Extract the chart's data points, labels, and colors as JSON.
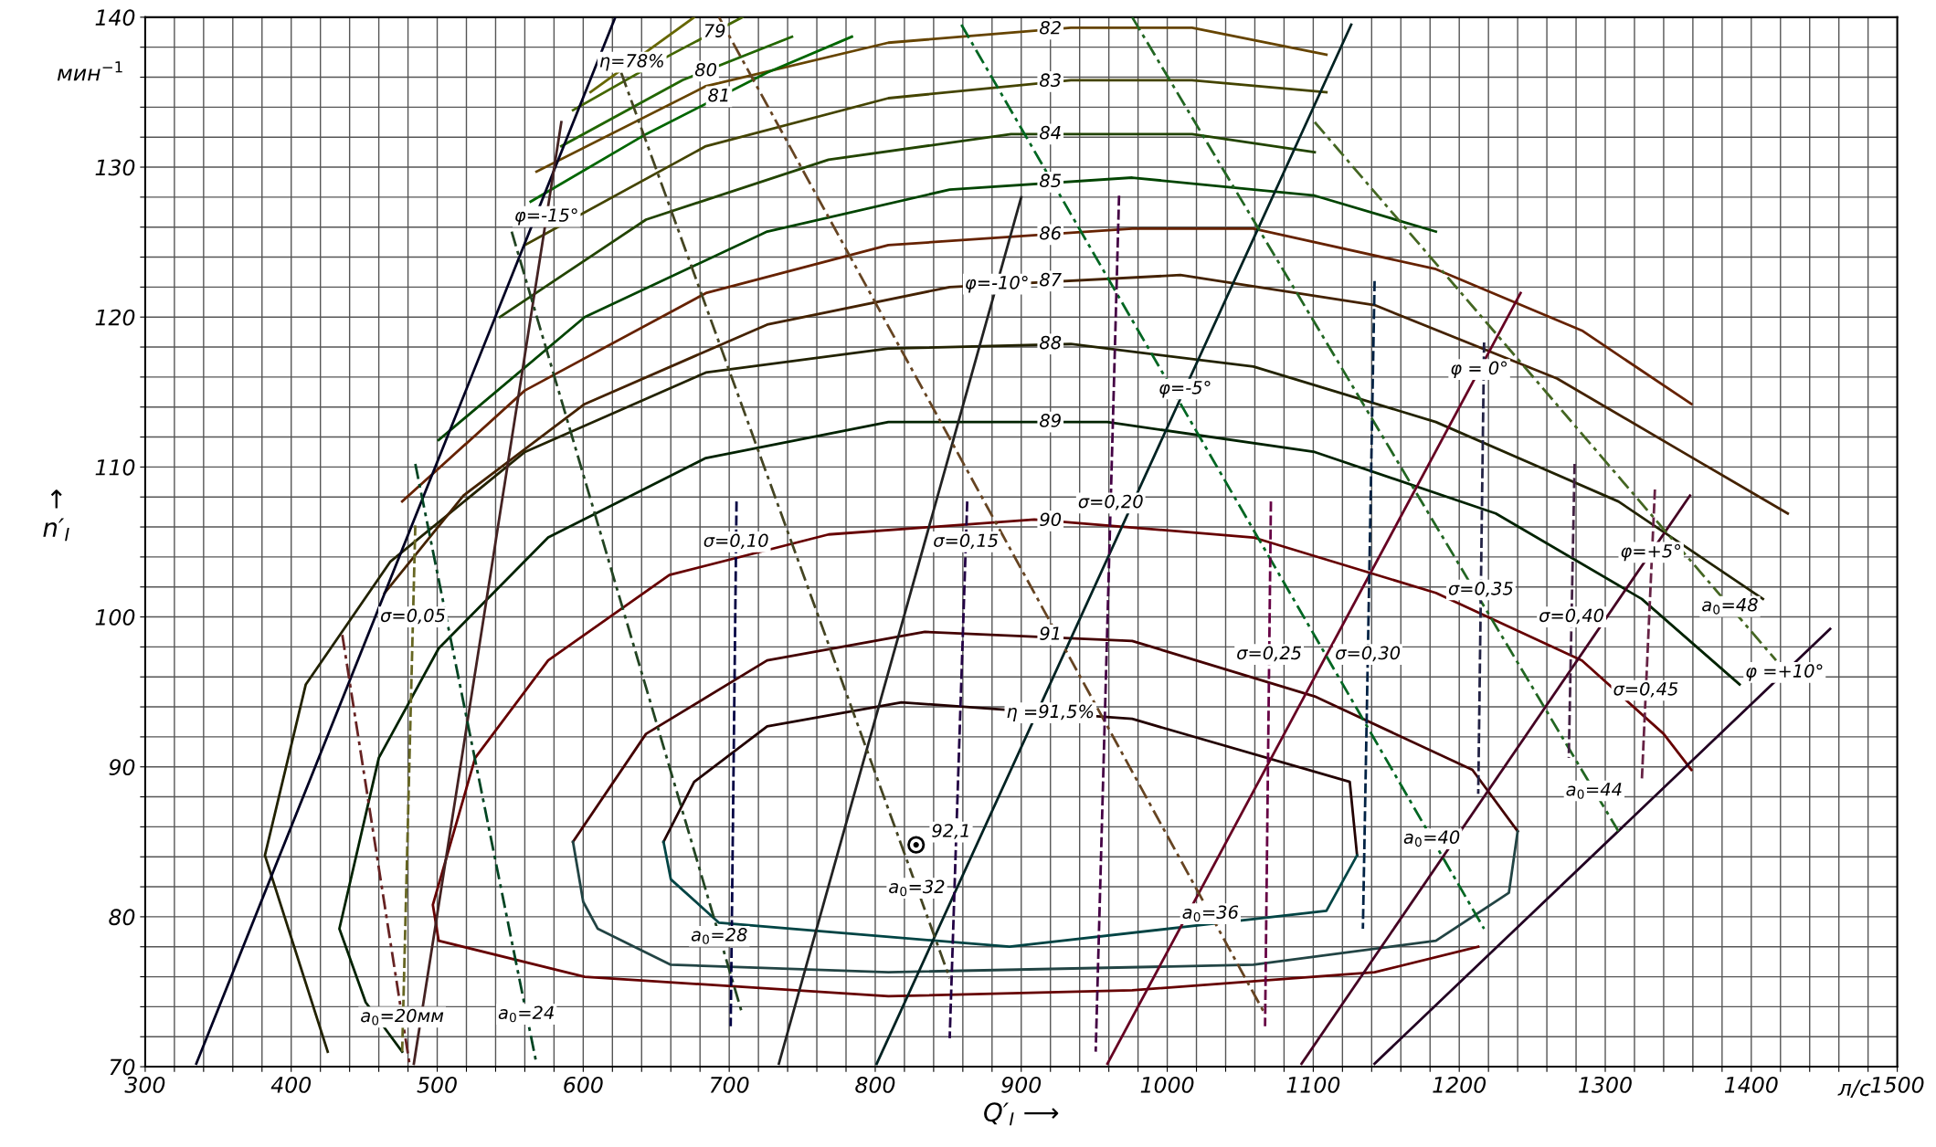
{
  "chart_data": {
    "type": "line",
    "xlabel": "Q′$_{I}$ ⟶",
    "ylabel": "↑\nn′$_{I}$",
    "xlim": [
      300,
      1500
    ],
    "ylim": [
      70,
      140
    ],
    "xticks": [
      300,
      {
        "value": 320,
        "label": null
      },
      {
        "value": 340,
        "label": null
      },
      {
        "value": 360,
        "label": null
      },
      {
        "value": 380,
        "label": null
      },
      400,
      {
        "value": 420,
        "label": null
      },
      {
        "value": 440,
        "label": null
      },
      {
        "value": 460,
        "label": null
      },
      {
        "value": 480,
        "label": null
      },
      500,
      {
        "value": 520,
        "label": null
      },
      {
        "value": 540,
        "label": null
      },
      {
        "value": 560,
        "label": null
      },
      {
        "value": 580,
        "label": null
      },
      600,
      {
        "value": 620,
        "label": null
      },
      {
        "value": 640,
        "label": null
      },
      {
        "value": 660,
        "label": null
      },
      {
        "value": 680,
        "label": null
      },
      700,
      {
        "value": 720,
        "label": null
      },
      {
        "value": 740,
        "label": null
      },
      {
        "value": 760,
        "label": null
      },
      {
        "value": 780,
        "label": null
      },
      800,
      {
        "value": 820,
        "label": null
      },
      {
        "value": 840,
        "label": null
      },
      {
        "value": 860,
        "label": null
      },
      {
        "value": 880,
        "label": null
      },
      900,
      {
        "value": 920,
        "label": null
      },
      {
        "value": 940,
        "label": null
      },
      {
        "value": 960,
        "label": null
      },
      {
        "value": 980,
        "label": null
      },
      1000,
      {
        "value": 1020,
        "label": null
      },
      {
        "value": 1040,
        "label": null
      },
      {
        "value": 1060,
        "label": null
      },
      {
        "value": 1080,
        "label": null
      },
      1100,
      {
        "value": 1120,
        "label": null
      },
      {
        "value": 1140,
        "label": null
      },
      {
        "value": 1160,
        "label": null
      },
      {
        "value": 1180,
        "label": null
      },
      1200,
      {
        "value": 1220,
        "label": null
      },
      {
        "value": 1240,
        "label": null
      },
      {
        "value": 1260,
        "label": null
      },
      {
        "value": 1280,
        "label": null
      },
      1300,
      {
        "value": 1320,
        "label": null
      },
      {
        "value": 1340,
        "label": null
      },
      {
        "value": 1360,
        "label": null
      },
      {
        "value": 1380,
        "label": null
      },
      1400,
      {
        "value": 1420,
        "label": null
      },
      {
        "value": 1440,
        "label": null
      },
      {
        "value": 1460,
        "label": null
      },
      {
        "value": 1480,
        "label": null
      },
      1500
    ],
    "yticks": [
      70,
      {
        "value": 72,
        "label": null
      },
      {
        "value": 74,
        "label": null
      },
      {
        "value": 76,
        "label": null
      },
      {
        "value": 78,
        "label": null
      },
      80,
      {
        "value": 82,
        "label": null
      },
      {
        "value": 84,
        "label": null
      },
      {
        "value": 86,
        "label": null
      },
      {
        "value": 88,
        "label": null
      },
      90,
      {
        "value": 92,
        "label": null
      },
      {
        "value": 94,
        "label": null
      },
      {
        "value": 96,
        "label": null
      },
      {
        "value": 98,
        "label": null
      },
      100,
      {
        "value": 102,
        "label": null
      },
      {
        "value": 104,
        "label": null
      },
      {
        "value": 106,
        "label": null
      },
      {
        "value": 108,
        "label": null
      },
      110,
      {
        "value": 112,
        "label": null
      },
      {
        "value": 114,
        "label": null
      },
      {
        "value": 116,
        "label": null
      },
      {
        "value": 118,
        "label": null
      },
      120,
      {
        "value": 122,
        "label": null
      },
      {
        "value": 124,
        "label": null
      },
      {
        "value": 126,
        "label": null
      },
      {
        "value": 128,
        "label": null
      },
      130,
      {
        "value": 132,
        "label": null
      },
      {
        "value": 134,
        "label": null
      },
      {
        "value": 136,
        "label": null
      },
      {
        "value": 138,
        "label": null
      },
      140
    ],
    "grid": true,
    "legend": false,
    "series": [
      {
        "color": "#220000",
        "line_style": "solid",
        "x": [
          655,
          676,
          726,
          818,
          976,
          1125,
          1130
        ],
        "values": [
          85,
          89,
          92.7,
          94.3,
          93.2,
          89,
          84.1
        ]
      },
      {
        "color": "#004444",
        "line_style": "solid",
        "x": [
          655,
          660,
          693,
          892,
          1109,
          1130
        ],
        "values": [
          85,
          82.5,
          79.6,
          78,
          80.4,
          84.1
        ]
      },
      {
        "color": "#440000",
        "line_style": "solid",
        "x": [
          593,
          643,
          726,
          834,
          976,
          1101,
          1209,
          1240
        ],
        "values": [
          85,
          92.2,
          97.1,
          99,
          98.4,
          94.7,
          89.8,
          85.7
        ]
      },
      {
        "color": "#224444",
        "line_style": "solid",
        "x": [
          593,
          600,
          610,
          660,
          809,
          1059,
          1184,
          1234,
          1240
        ],
        "values": [
          85,
          81,
          79.2,
          76.8,
          76.3,
          76.8,
          78.4,
          81.6,
          85.7
        ]
      },
      {
        "color": "#660000",
        "line_style": "solid",
        "x": [
          1213,
          1142,
          976,
          809,
          601,
          501,
          497,
          526,
          576,
          659,
          768,
          909,
          1059,
          1184,
          1284,
          1340,
          1359
        ],
        "values": [
          78,
          76.3,
          75.1,
          74.7,
          76,
          78.4,
          80.8,
          90.6,
          97.1,
          102.8,
          105.5,
          106.5,
          105.3,
          101.6,
          97.1,
          92.2,
          89.8
        ]
      },
      {
        "color": "#002200",
        "line_style": "solid",
        "x": [
          476,
          451,
          433,
          460,
          501,
          576,
          684,
          809,
          959,
          1101,
          1225,
          1325,
          1392
        ],
        "values": [
          71,
          74.3,
          79.2,
          90.6,
          97.9,
          105.3,
          110.6,
          113,
          113,
          111,
          106.9,
          101.2,
          95.5
        ]
      },
      {
        "color": "#222200",
        "line_style": "solid",
        "x": [
          425,
          382,
          410,
          468,
          560,
          684,
          809,
          934,
          1059,
          1184,
          1309,
          1408
        ],
        "values": [
          71,
          84.1,
          95.5,
          103.7,
          111,
          116.3,
          117.9,
          118.2,
          116.7,
          113,
          107.7,
          101.2
        ]
      },
      {
        "color": "#442200",
        "line_style": "solid",
        "x": [
          464,
          518,
          601,
          726,
          851,
          1009,
          1142,
          1267,
          1367,
          1425
        ],
        "values": [
          101.6,
          108.1,
          114.2,
          119.5,
          122,
          122.8,
          120.8,
          115.9,
          110.2,
          106.9
        ]
      },
      {
        "color": "#662200",
        "line_style": "solid",
        "x": [
          476,
          560,
          684,
          809,
          976,
          1059,
          1184,
          1284,
          1359
        ],
        "values": [
          107.7,
          115.1,
          121.6,
          124.8,
          125.9,
          125.9,
          123.2,
          119.1,
          114.2
        ]
      },
      {
        "color": "#004400",
        "line_style": "solid",
        "x": [
          501,
          601,
          726,
          851,
          976,
          1101,
          1184
        ],
        "values": [
          111.8,
          120,
          125.7,
          128.5,
          129.3,
          128.1,
          125.7
        ]
      },
      {
        "color": "#224400",
        "line_style": "solid",
        "x": [
          543,
          643,
          768,
          893,
          1017,
          1101
        ],
        "values": [
          120,
          126.5,
          130.5,
          132.2,
          132.2,
          131
        ]
      },
      {
        "color": "#444400",
        "line_style": "solid",
        "x": [
          560,
          684,
          809,
          934,
          1017,
          1109
        ],
        "values": [
          124.8,
          131.4,
          134.6,
          135.8,
          135.8,
          135
        ]
      },
      {
        "color": "#664400",
        "line_style": "solid",
        "x": [
          568,
          684,
          809,
          934,
          1017,
          1109
        ],
        "values": [
          129.7,
          135.4,
          138.3,
          139.3,
          139.3,
          137.5
        ]
      },
      {
        "color": "#006600",
        "line_style": "solid",
        "x": [
          564,
          643,
          726,
          784
        ],
        "values": [
          127.7,
          132.2,
          136.3,
          138.7
        ]
      },
      {
        "color": "#226600",
        "line_style": "solid",
        "x": [
          585,
          668,
          743
        ],
        "values": [
          131.4,
          135.8,
          138.7
        ]
      },
      {
        "color": "#446600",
        "line_style": "solid",
        "x": [
          593,
          660,
          709
        ],
        "values": [
          133.8,
          137.5,
          140
        ]
      },
      {
        "color": "#666600",
        "line_style": "solid",
        "x": [
          605,
          676
        ],
        "values": [
          135,
          140
        ]
      },
      {
        "color": "#000022",
        "line_style": "solid",
        "x": [
          335,
          622
        ],
        "values": [
          70.2,
          140
        ]
      },
      {
        "color": "#220022",
        "line_style": "solid",
        "x": [
          1142,
          1454
        ],
        "values": [
          70.2,
          99.2
        ]
      },
      {
        "color": "#440022",
        "line_style": "solid",
        "x": [
          1092,
          1358
        ],
        "values": [
          70.2,
          108.1
        ]
      },
      {
        "color": "#660022",
        "line_style": "solid",
        "x": [
          959,
          1242
        ],
        "values": [
          70.2,
          121.6
        ]
      },
      {
        "color": "#002222",
        "line_style": "solid",
        "x": [
          801,
          1126
        ],
        "values": [
          70.2,
          139.5
        ]
      },
      {
        "color": "#222222",
        "line_style": "solid",
        "x": [
          734,
          900
        ],
        "values": [
          70.2,
          128
        ]
      },
      {
        "color": "#442222",
        "line_style": "solid",
        "x": [
          484,
          585
        ],
        "values": [
          70.2,
          133
        ]
      },
      {
        "color": "#662222",
        "line_style": "dotted",
        "x": [
          435,
          481
        ],
        "values": [
          98.8,
          70.2
        ]
      },
      {
        "color": "#004422",
        "line_style": "dotted",
        "x": [
          485,
          568
        ],
        "values": [
          110.2,
          70.2
        ]
      },
      {
        "color": "#224422",
        "line_style": "dotted",
        "x": [
          551,
          709
        ],
        "values": [
          125.7,
          73.5
        ]
      },
      {
        "color": "#444422",
        "line_style": "dotted",
        "x": [
          626,
          851
        ],
        "values": [
          136.3,
          75.9
        ]
      },
      {
        "color": "#664422",
        "line_style": "dotted",
        "x": [
          693,
          1067
        ],
        "values": [
          140,
          73.5
        ]
      },
      {
        "color": "#006622",
        "line_style": "dotted",
        "x": [
          859,
          1217
        ],
        "values": [
          139.5,
          79.2
        ]
      },
      {
        "color": "#226622",
        "line_style": "dotted",
        "x": [
          976,
          1309
        ],
        "values": [
          140,
          85.7
        ]
      },
      {
        "color": "#446622",
        "line_style": "dotted",
        "x": [
          1101,
          1417
        ],
        "values": [
          133,
          97.1
        ]
      },
      {
        "color": "#666622",
        "line_style": "dashed",
        "x": [
          485,
          476
        ],
        "values": [
          106.1,
          71
        ]
      },
      {
        "color": "#000044",
        "line_style": "dashed",
        "x": [
          705,
          701
        ],
        "values": [
          107.7,
          72.7
        ]
      },
      {
        "color": "#220044",
        "line_style": "dashed",
        "x": [
          863,
          855,
          851
        ],
        "values": [
          107.7,
          84,
          71.9
        ]
      },
      {
        "color": "#440044",
        "line_style": "dashed",
        "x": [
          967,
          951
        ],
        "values": [
          128.1,
          71
        ]
      },
      {
        "color": "#660044",
        "line_style": "dashed",
        "x": [
          1071,
          1067
        ],
        "values": [
          107.7,
          72.7
        ]
      },
      {
        "color": "#002244",
        "line_style": "dashed",
        "x": [
          1142,
          1134
        ],
        "values": [
          122.4,
          79.2
        ]
      },
      {
        "color": "#222244",
        "line_style": "dashed",
        "x": [
          1217,
          1213
        ],
        "values": [
          118.3,
          88.2
        ]
      },
      {
        "color": "#442244",
        "line_style": "dashed",
        "x": [
          1279,
          1275
        ],
        "values": [
          110.2,
          90.6
        ]
      },
      {
        "color": "#662244",
        "line_style": "dashed",
        "x": [
          1334,
          1325
        ],
        "values": [
          108.5,
          89
        ]
      },
      {
        "type": "scatter",
        "color": "#000000",
        "marker": "circle",
        "x": [
          828
        ],
        "values": [
          84.8
        ]
      }
    ],
    "annotations": [
      "мин$^{−1}$",
      "л/с",
      {
        "text": "η=78%",
        "x": 633.4,
        "y": 137
      },
      {
        "text": "79",
        "x": 690,
        "y": 139
      },
      {
        "text": "80",
        "x": 684,
        "y": 136.4
      },
      {
        "text": "81",
        "x": 693,
        "y": 134.7
      },
      {
        "text": "82",
        "x": 920,
        "y": 139.2
      },
      {
        "text": "83",
        "x": 920,
        "y": 135.7
      },
      {
        "text": "84",
        "x": 920,
        "y": 132.2
      },
      {
        "text": "85",
        "x": 920,
        "y": 129
      },
      {
        "text": "86",
        "x": 920,
        "y": 125.5
      },
      {
        "text": "87",
        "x": 920,
        "y": 122.4
      },
      {
        "text": "88",
        "x": 920,
        "y": 118.2
      },
      {
        "text": "89",
        "x": 920,
        "y": 113
      },
      {
        "text": "90",
        "x": 920,
        "y": 106.4
      },
      {
        "text": "91",
        "x": 920,
        "y": 98.8
      },
      {
        "text": "η =91,5%",
        "x": 920,
        "y": 93.6
      },
      {
        "text": "92,1",
        "x": 828,
        "y": 84.8
      },
      {
        "text": "φ=-15°",
        "x": 574.9,
        "y": 126.7
      },
      {
        "text": "φ=-10°",
        "x": 883.4,
        "y": 122.2
      },
      {
        "text": "φ=-5°",
        "x": 1012.3,
        "y": 115.2
      },
      {
        "text": "φ = 0°",
        "x": 1213.7,
        "y": 116.5
      },
      {
        "text": "φ=+5°",
        "x": 1331.4,
        "y": 104.3
      },
      {
        "text": "φ =+10°",
        "x": 1422.8,
        "y": 96.3
      },
      {
        "text": "σ=0,05",
        "x": 483.4,
        "y": 100
      },
      {
        "text": "σ=0,10",
        "x": 704.7,
        "y": 105
      },
      {
        "text": "σ=0,15",
        "x": 862.1,
        "y": 105
      },
      {
        "text": "σ=0,20",
        "x": 961.3,
        "y": 107.6
      },
      {
        "text": "σ=0,25",
        "x": 1069.8,
        "y": 97.5
      },
      {
        "text": "σ=0,30",
        "x": 1137.4,
        "y": 97.5
      },
      {
        "text": "σ=0,35",
        "x": 1214.8,
        "y": 101.8
      },
      {
        "text": "σ=0,40",
        "x": 1276.9,
        "y": 100
      },
      {
        "text": "σ=0,45",
        "x": 1327.8,
        "y": 95.1
      },
      {
        "text": "a$_{0}$=20мм",
        "x": 476,
        "y": 73.3
      },
      {
        "text": "a$_{0}$=24",
        "x": 561.1,
        "y": 73.5
      },
      {
        "text": "a$_{0}$=28",
        "x": 693.2,
        "y": 78.7
      },
      {
        "text": "a$_{0}$=32",
        "x": 828.5,
        "y": 81.9
      },
      {
        "text": "a$_{0}$=36",
        "x": 1029.6,
        "y": 80.2
      },
      {
        "text": "a$_{0}$=40",
        "x": 1181.2,
        "y": 85.2
      },
      {
        "text": "a$_{0}$=44",
        "x": 1292.4,
        "y": 88.4
      },
      {
        "text": "a$_{0}$=48",
        "x": 1385.4,
        "y": 100.7
      }
    ]
  }
}
